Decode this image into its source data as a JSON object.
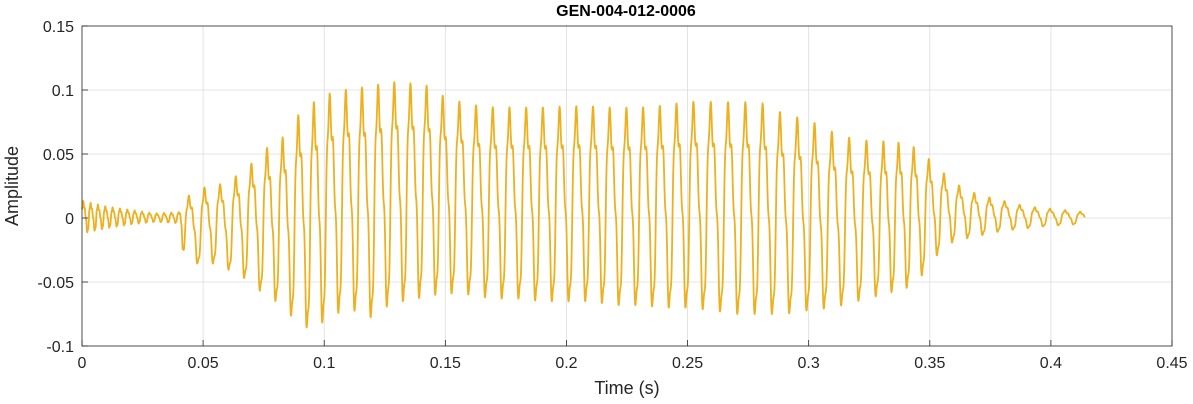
{
  "chart_data": {
    "type": "line",
    "title": "GEN-004-012-0006",
    "xlabel": "Time (s)",
    "ylabel": "Amplitude",
    "xlim": [
      0,
      0.45
    ],
    "ylim": [
      -0.1,
      0.15
    ],
    "x_ticks": [
      0,
      0.05,
      0.1,
      0.15,
      0.2,
      0.25,
      0.3,
      0.35,
      0.4,
      0.45
    ],
    "x_tick_labels": [
      "0",
      "0.05",
      "0.1",
      "0.15",
      "0.2",
      "0.25",
      "0.3",
      "0.35",
      "0.4",
      "0.45"
    ],
    "y_ticks": [
      -0.1,
      -0.05,
      0,
      0.05,
      0.1,
      0.15
    ],
    "y_tick_labels": [
      "-0.1",
      "-0.05",
      "0",
      "0.05",
      "0.1",
      "0.15"
    ],
    "grid": true,
    "line_color": "#EDB120",
    "series": [
      {
        "x_start": 0,
        "x_end": 0.414,
        "description": "speech waveform; peak envelope (time s, amplitude)",
        "envelope_max": [
          [
            0,
            0.015
          ],
          [
            0.01,
            0.01
          ],
          [
            0.02,
            0.007
          ],
          [
            0.03,
            0.004
          ],
          [
            0.04,
            0.005
          ],
          [
            0.042,
            0.018
          ],
          [
            0.05,
            0.027
          ],
          [
            0.055,
            0.03
          ],
          [
            0.06,
            0.03
          ],
          [
            0.065,
            0.04
          ],
          [
            0.07,
            0.048
          ],
          [
            0.075,
            0.06
          ],
          [
            0.08,
            0.065
          ],
          [
            0.085,
            0.075
          ],
          [
            0.09,
            0.092
          ],
          [
            0.095,
            0.1
          ],
          [
            0.1,
            0.105
          ],
          [
            0.105,
            0.11
          ],
          [
            0.11,
            0.11
          ],
          [
            0.115,
            0.112
          ],
          [
            0.12,
            0.113
          ],
          [
            0.125,
            0.116
          ],
          [
            0.13,
            0.116
          ],
          [
            0.135,
            0.115
          ],
          [
            0.14,
            0.115
          ],
          [
            0.145,
            0.11
          ],
          [
            0.15,
            0.103
          ],
          [
            0.155,
            0.1
          ],
          [
            0.16,
            0.097
          ],
          [
            0.17,
            0.095
          ],
          [
            0.18,
            0.095
          ],
          [
            0.19,
            0.095
          ],
          [
            0.2,
            0.096
          ],
          [
            0.21,
            0.096
          ],
          [
            0.22,
            0.095
          ],
          [
            0.23,
            0.095
          ],
          [
            0.24,
            0.097
          ],
          [
            0.25,
            0.1
          ],
          [
            0.26,
            0.1
          ],
          [
            0.27,
            0.1
          ],
          [
            0.28,
            0.1
          ],
          [
            0.29,
            0.09
          ],
          [
            0.3,
            0.085
          ],
          [
            0.31,
            0.075
          ],
          [
            0.32,
            0.068
          ],
          [
            0.33,
            0.067
          ],
          [
            0.34,
            0.065
          ],
          [
            0.345,
            0.06
          ],
          [
            0.35,
            0.05
          ],
          [
            0.355,
            0.04
          ],
          [
            0.36,
            0.03
          ],
          [
            0.365,
            0.025
          ],
          [
            0.37,
            0.02
          ],
          [
            0.38,
            0.015
          ],
          [
            0.39,
            0.01
          ],
          [
            0.4,
            0.008
          ],
          [
            0.41,
            0.006
          ],
          [
            0.414,
            0.005
          ]
        ],
        "envelope_min": [
          [
            0,
            -0.012
          ],
          [
            0.01,
            -0.008
          ],
          [
            0.02,
            -0.005
          ],
          [
            0.03,
            -0.003
          ],
          [
            0.04,
            -0.004
          ],
          [
            0.042,
            -0.03
          ],
          [
            0.05,
            -0.038
          ],
          [
            0.055,
            -0.035
          ],
          [
            0.06,
            -0.04
          ],
          [
            0.065,
            -0.045
          ],
          [
            0.07,
            -0.05
          ],
          [
            0.075,
            -0.06
          ],
          [
            0.08,
            -0.065
          ],
          [
            0.085,
            -0.075
          ],
          [
            0.09,
            -0.08
          ],
          [
            0.095,
            -0.09
          ],
          [
            0.1,
            -0.08
          ],
          [
            0.105,
            -0.075
          ],
          [
            0.11,
            -0.07
          ],
          [
            0.115,
            -0.075
          ],
          [
            0.12,
            -0.078
          ],
          [
            0.125,
            -0.07
          ],
          [
            0.13,
            -0.065
          ],
          [
            0.135,
            -0.065
          ],
          [
            0.14,
            -0.062
          ],
          [
            0.145,
            -0.06
          ],
          [
            0.15,
            -0.06
          ],
          [
            0.155,
            -0.058
          ],
          [
            0.16,
            -0.06
          ],
          [
            0.17,
            -0.063
          ],
          [
            0.18,
            -0.063
          ],
          [
            0.19,
            -0.065
          ],
          [
            0.2,
            -0.065
          ],
          [
            0.21,
            -0.065
          ],
          [
            0.22,
            -0.068
          ],
          [
            0.23,
            -0.068
          ],
          [
            0.24,
            -0.07
          ],
          [
            0.25,
            -0.07
          ],
          [
            0.26,
            -0.072
          ],
          [
            0.27,
            -0.075
          ],
          [
            0.28,
            -0.075
          ],
          [
            0.29,
            -0.075
          ],
          [
            0.3,
            -0.072
          ],
          [
            0.31,
            -0.07
          ],
          [
            0.32,
            -0.065
          ],
          [
            0.33,
            -0.06
          ],
          [
            0.34,
            -0.055
          ],
          [
            0.345,
            -0.05
          ],
          [
            0.35,
            -0.035
          ],
          [
            0.355,
            -0.025
          ],
          [
            0.36,
            -0.018
          ],
          [
            0.37,
            -0.014
          ],
          [
            0.38,
            -0.01
          ],
          [
            0.39,
            -0.008
          ],
          [
            0.4,
            -0.006
          ],
          [
            0.41,
            -0.005
          ],
          [
            0.414,
            -0.004
          ]
        ]
      }
    ]
  }
}
